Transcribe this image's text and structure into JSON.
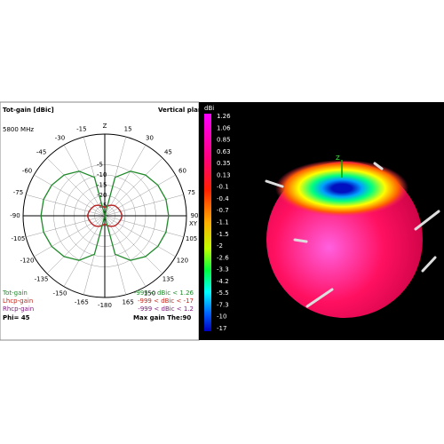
{
  "chart_data": {
    "type": "polar",
    "title": "Tot-gain [dBic]",
    "subtitle": "Vertical plane",
    "frequency": "5800 MHz",
    "axis_label_xy": "XY",
    "phi": "Phi= 45",
    "max_gain": "Max gain The:90",
    "rlim": [
      -30,
      10
    ],
    "rticks": [
      -25,
      -20,
      -15,
      -10,
      -5
    ],
    "thetaticks": [
      {
        "value": 0,
        "label": "Z"
      },
      15,
      30,
      45,
      60,
      75,
      90,
      105,
      120,
      135,
      150,
      165,
      {
        "value": 180,
        "label": "-180"
      },
      -165,
      -150,
      -135,
      -120,
      -105,
      -90,
      -75,
      -60,
      -45,
      -30,
      -15
    ],
    "x": [
      -180,
      -165,
      -150,
      -135,
      -120,
      -105,
      -90,
      -75,
      -60,
      -45,
      -30,
      -15,
      0,
      15,
      30,
      45,
      60,
      75,
      90,
      105,
      120,
      135,
      150,
      165,
      180
    ],
    "series": [
      {
        "name": "Rhcp-gain",
        "range": "-999 < dBic < 1.2",
        "color": "#7a1a7a",
        "values": [
          -26,
          -25,
          -24,
          -23,
          -22.5,
          -22,
          -21.5,
          -22,
          -22.5,
          -23,
          -24,
          -25,
          -26,
          -25,
          -24,
          -23,
          -22.5,
          -22,
          -21.5,
          -22,
          -22.5,
          -23,
          -24,
          -25,
          -26
        ]
      },
      {
        "name": "Lhcp-gain",
        "range": "-999 < dBic < -17",
        "color": "#c0281e",
        "values": [
          -26,
          -25,
          -24,
          -23,
          -22.5,
          -22,
          -21.5,
          -22,
          -22.5,
          -23,
          -24,
          -25,
          -26,
          -25,
          -24,
          -23,
          -22.5,
          -22,
          -21.5,
          -22,
          -22.5,
          -23,
          -24,
          -25,
          -26
        ]
      },
      {
        "name": "Tot-gain",
        "range": "-999 < dBic < 1.26",
        "color": "#1f8a2a",
        "values": [
          -30,
          -10.5,
          -4.8,
          -1.8,
          0,
          1,
          1.26,
          1,
          0,
          -1.8,
          -4.8,
          -10.5,
          -30,
          -10.5,
          -4.8,
          -1.8,
          0,
          1,
          1.26,
          1,
          0,
          -1.8,
          -4.8,
          -10.5,
          -30
        ]
      }
    ],
    "colorbar": {
      "label": "dBi",
      "ticks": [
        1.26,
        1.06,
        0.85,
        0.63,
        0.35,
        0.13,
        -0.1,
        -0.4,
        -0.7,
        -1.1,
        -1.5,
        -2,
        -2.6,
        -3.3,
        -4.2,
        -5.5,
        -7.3,
        -10,
        -17
      ]
    },
    "axis_z": "Z"
  }
}
